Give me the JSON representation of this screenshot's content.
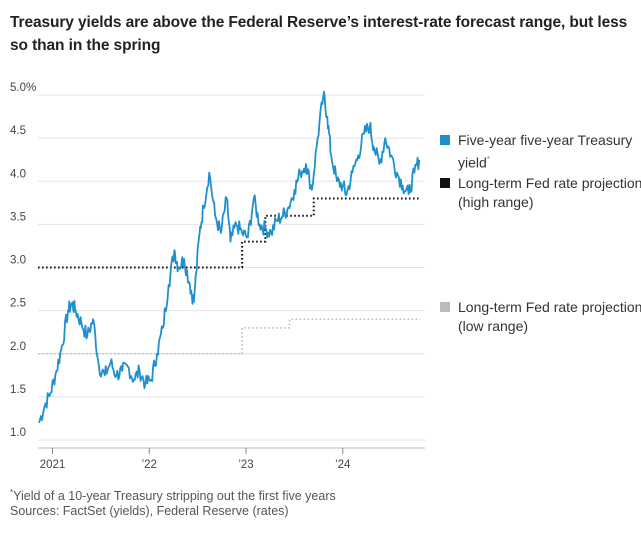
{
  "title": "Treasury yields are above the Federal Reserve’s interest-rate forecast range, but less so than in the spring",
  "legend": [
    {
      "label": "Five-year five-year Treasury yield",
      "sup": "*",
      "color": "#1f8fce"
    },
    {
      "label": "Long-term Fed rate projections (high range)",
      "color": "#111111"
    },
    {
      "label": "Long-term Fed rate projections (low range)",
      "color": "#bbbbbb"
    }
  ],
  "footnote": {
    "sup": "*",
    "text": "Yield of a 10-year Treasury stripping out the first five years",
    "sources": "Sources: FactSet (yields), Federal Reserve (rates)"
  },
  "chart_data": {
    "type": "line",
    "title": "Treasury yields are above the Federal Reserve’s interest-rate forecast range, but less so than in the spring",
    "xlabel": "",
    "ylabel": "",
    "ylim": [
      1.0,
      5.0
    ],
    "xlim": [
      2020.85,
      2024.85
    ],
    "yticks": [
      1.0,
      1.5,
      2.0,
      2.5,
      3.0,
      3.5,
      4.0,
      4.5,
      5.0
    ],
    "ytick_labels": [
      "1.0",
      "1.5",
      "2.0",
      "2.5",
      "3.0",
      "3.5",
      "4.0",
      "4.5",
      "5.0%"
    ],
    "xticks": [
      2021,
      2022,
      2023,
      2024
    ],
    "xtick_labels": [
      "2021",
      "’22",
      "’23",
      "’24"
    ],
    "grid": true,
    "series": [
      {
        "name": "Five-year five-year Treasury yield",
        "color": "#1f8fce",
        "style": "solid",
        "x": [
          2020.86,
          2020.92,
          2020.98,
          2021.04,
          2021.1,
          2021.16,
          2021.2,
          2021.24,
          2021.3,
          2021.36,
          2021.42,
          2021.48,
          2021.54,
          2021.6,
          2021.66,
          2021.72,
          2021.78,
          2021.84,
          2021.9,
          2021.96,
          2022.02,
          2022.08,
          2022.14,
          2022.2,
          2022.26,
          2022.3,
          2022.36,
          2022.42,
          2022.46,
          2022.52,
          2022.56,
          2022.62,
          2022.68,
          2022.74,
          2022.8,
          2022.84,
          2022.9,
          2022.96,
          2023.02,
          2023.08,
          2023.14,
          2023.2,
          2023.26,
          2023.32,
          2023.38,
          2023.44,
          2023.5,
          2023.56,
          2023.62,
          2023.68,
          2023.74,
          2023.8,
          2023.84,
          2023.88,
          2023.94,
          2024.0,
          2024.04,
          2024.1,
          2024.16,
          2024.22,
          2024.28,
          2024.32,
          2024.38,
          2024.44,
          2024.5,
          2024.56,
          2024.62,
          2024.68,
          2024.74,
          2024.79
        ],
        "values": [
          1.2,
          1.4,
          1.55,
          1.8,
          2.1,
          2.5,
          2.58,
          2.5,
          2.35,
          2.2,
          2.4,
          1.85,
          1.75,
          1.9,
          1.75,
          1.8,
          1.85,
          1.7,
          1.8,
          1.65,
          1.7,
          2.0,
          2.3,
          2.8,
          3.2,
          3.0,
          3.1,
          2.8,
          2.6,
          3.4,
          3.7,
          4.1,
          3.6,
          3.4,
          3.8,
          3.3,
          3.5,
          3.4,
          3.35,
          3.8,
          3.5,
          3.45,
          3.4,
          3.55,
          3.6,
          3.7,
          3.9,
          4.1,
          4.2,
          3.9,
          4.5,
          5.0,
          4.75,
          4.3,
          4.0,
          3.95,
          3.85,
          4.1,
          4.3,
          4.55,
          4.65,
          4.4,
          4.2,
          4.5,
          4.3,
          4.1,
          3.95,
          3.85,
          4.1,
          4.25
        ]
      },
      {
        "name": "Long-term Fed rate projections (high range)",
        "color": "#111111",
        "style": "dotted",
        "x": [
          2020.85,
          2021.96,
          2022.96,
          2023.2,
          2023.45,
          2023.7,
          2024.21,
          2024.8
        ],
        "values": [
          3.0,
          3.0,
          3.3,
          3.6,
          3.6,
          3.8,
          3.8,
          3.8
        ]
      },
      {
        "name": "Long-term Fed rate projections (low range)",
        "color": "#bbbbbb",
        "style": "dotted",
        "x": [
          2020.85,
          2022.96,
          2023.45,
          2024.8
        ],
        "values": [
          2.0,
          2.3,
          2.4,
          2.4
        ]
      }
    ]
  }
}
